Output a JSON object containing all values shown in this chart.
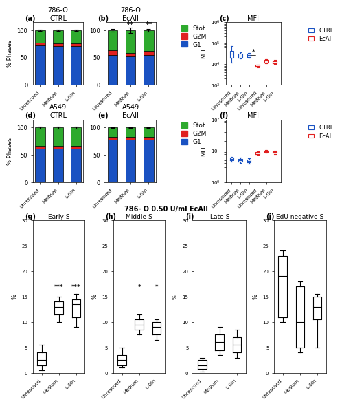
{
  "bar_categories": [
    "Unrescued",
    "Medium",
    "L-Gln"
  ],
  "panel_a_title": "786-O\nCTRL",
  "panel_b_title": "786-O\nEcAII",
  "panel_d_title": "A549\nCTRL",
  "panel_e_title": "A549\nEcAII",
  "panel_c_title": "MFI",
  "panel_f_title": "MFI",
  "panel_g_title": "Early S",
  "panel_h_title": "Middle S",
  "panel_i_title": "Late S",
  "panel_j_title": "EdU negative S",
  "bottom_title": "786- O 0.50 U/ml EcAII",
  "a_g1": [
    72,
    71,
    71
  ],
  "a_g2m": [
    5,
    5,
    5
  ],
  "a_stot": [
    23,
    24,
    24
  ],
  "a_stot_err": [
    1.5,
    1.5,
    1.5
  ],
  "b_g1": [
    55,
    52,
    55
  ],
  "b_g2m": [
    8,
    7,
    7
  ],
  "b_stot": [
    37,
    41,
    38
  ],
  "b_stot_err": [
    2,
    5,
    3
  ],
  "d_g1": [
    62,
    61,
    61
  ],
  "d_g2m": [
    5,
    5,
    5
  ],
  "d_stot": [
    33,
    34,
    34
  ],
  "d_stot_err": [
    2,
    2,
    2
  ],
  "e_g1": [
    78,
    78,
    78
  ],
  "e_g2m": [
    5,
    5,
    5
  ],
  "e_stot": [
    17,
    17,
    17
  ],
  "e_stot_err": [
    0.5,
    0.5,
    0.5
  ],
  "c_ctrl_boxes": [
    {
      "med": 30000,
      "q1": 20000,
      "q3": 42000,
      "whislo": 12000,
      "whishi": 70000
    },
    {
      "med": 25000,
      "q1": 20000,
      "q3": 30000,
      "whislo": 18000,
      "whishi": 35000
    },
    {
      "med": 26000,
      "q1": 22000,
      "q3": 30000,
      "whislo": 19000,
      "whishi": 33000
    }
  ],
  "c_ecaii_boxes": [
    {
      "med": 8000,
      "q1": 7500,
      "q3": 9000,
      "whislo": 7000,
      "whishi": 9500
    },
    {
      "med": 14000,
      "q1": 12000,
      "q3": 16000,
      "whislo": 11000,
      "whishi": 17000
    },
    {
      "med": 13000,
      "q1": 11000,
      "q3": 15000,
      "whislo": 10000,
      "whishi": 16000
    }
  ],
  "f_ctrl_boxes": [
    {
      "med": 5.5,
      "q1": 5.0,
      "q3": 6.0,
      "whislo": 4.5,
      "whishi": 6.5
    },
    {
      "med": 5.0,
      "q1": 4.5,
      "q3": 5.5,
      "whislo": 4.0,
      "whishi": 6.0
    },
    {
      "med": 4.8,
      "q1": 4.3,
      "q3": 5.3,
      "whislo": 3.8,
      "whishi": 5.8
    }
  ],
  "f_ecaii_boxes": [
    {
      "med": 8.5,
      "q1": 8.0,
      "q3": 9.0,
      "whislo": 7.5,
      "whishi": 9.5
    },
    {
      "med": 9.5,
      "q1": 9.0,
      "q3": 10.0,
      "whislo": 8.5,
      "whishi": 10.5
    },
    {
      "med": 9.0,
      "q1": 8.5,
      "q3": 9.5,
      "whislo": 8.0,
      "whishi": 10.0
    }
  ],
  "g_boxes": [
    {
      "med": 2.5,
      "q1": 1.5,
      "q3": 4.0,
      "whislo": 0.5,
      "whishi": 5.5
    },
    {
      "med": 13.0,
      "q1": 11.5,
      "q3": 14.0,
      "whislo": 10.0,
      "whishi": 15.0
    },
    {
      "med": 13.5,
      "q1": 11.0,
      "q3": 14.5,
      "whislo": 9.0,
      "whishi": 15.5
    }
  ],
  "h_boxes": [
    {
      "med": 2.5,
      "q1": 1.5,
      "q3": 3.5,
      "whislo": 1.0,
      "whishi": 5.0
    },
    {
      "med": 9.5,
      "q1": 8.5,
      "q3": 10.5,
      "whislo": 7.5,
      "whishi": 11.5
    },
    {
      "med": 9.0,
      "q1": 7.5,
      "q3": 10.0,
      "whislo": 6.5,
      "whishi": 10.5
    }
  ],
  "i_boxes": [
    {
      "med": 1.5,
      "q1": 0.8,
      "q3": 2.5,
      "whislo": 0.3,
      "whishi": 3.0
    },
    {
      "med": 6.0,
      "q1": 4.5,
      "q3": 7.5,
      "whislo": 3.5,
      "whishi": 9.0
    },
    {
      "med": 5.5,
      "q1": 4.0,
      "q3": 7.0,
      "whislo": 3.0,
      "whishi": 8.5
    }
  ],
  "j_boxes": [
    {
      "med": 19.0,
      "q1": 11.0,
      "q3": 23.0,
      "whislo": 10.0,
      "whishi": 24.0
    },
    {
      "med": 10.0,
      "q1": 5.0,
      "q3": 17.0,
      "whislo": 4.0,
      "whishi": 18.0
    },
    {
      "med": 13.0,
      "q1": 10.5,
      "q3": 15.0,
      "whislo": 5.0,
      "whishi": 15.5
    }
  ],
  "color_g1": "#1A52C2",
  "color_g2m": "#E02020",
  "color_stot": "#2EAA2E",
  "color_ctrl_box": "#1A52C2",
  "color_ecaii_box": "#E02020",
  "label_g1": "G1",
  "label_g2m": "G2M",
  "label_stot": "Stot",
  "label_ctrl": "CTRL",
  "label_ecaii": "EcAII"
}
